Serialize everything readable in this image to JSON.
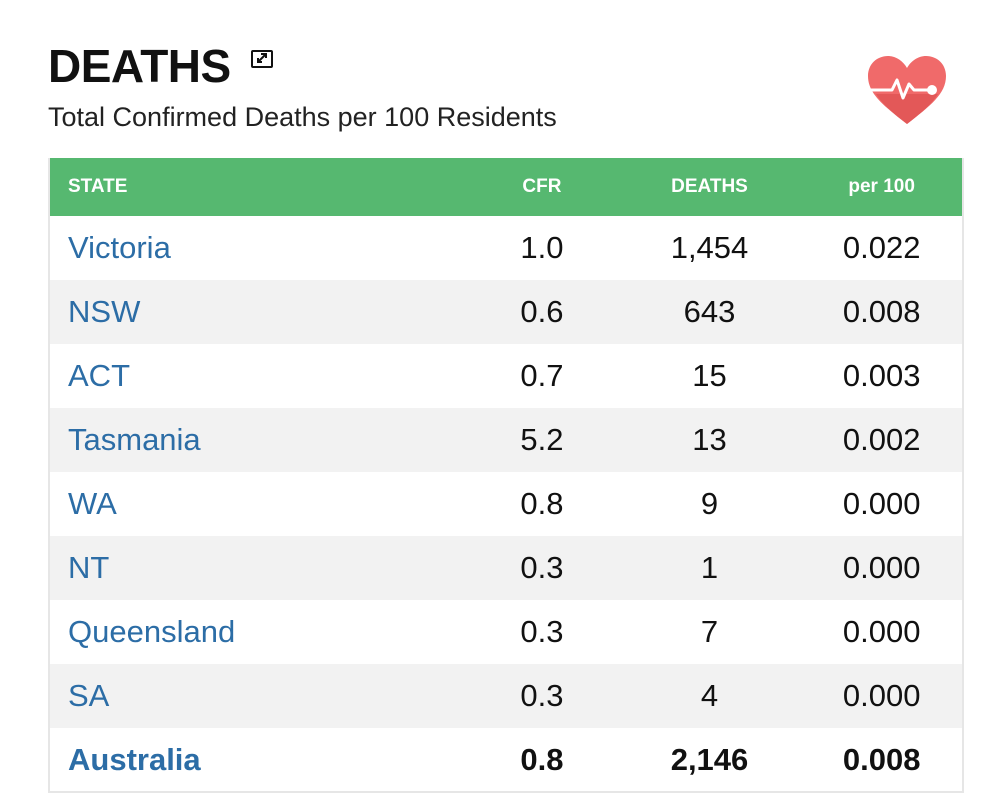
{
  "header": {
    "title": "DEATHS",
    "subtitle": "Total Confirmed Deaths per 100 Residents"
  },
  "colors": {
    "header_bg": "#56b870",
    "link": "#2c6da6",
    "heart": "#f06a6a"
  },
  "table": {
    "columns": [
      "STATE",
      "CFR",
      "DEATHS",
      "per 100"
    ],
    "rows": [
      {
        "state": "Victoria",
        "cfr": "1.0",
        "deaths": "1,454",
        "per100": "0.022"
      },
      {
        "state": "NSW",
        "cfr": "0.6",
        "deaths": "643",
        "per100": "0.008"
      },
      {
        "state": "ACT",
        "cfr": "0.7",
        "deaths": "15",
        "per100": "0.003"
      },
      {
        "state": "Tasmania",
        "cfr": "5.2",
        "deaths": "13",
        "per100": "0.002"
      },
      {
        "state": "WA",
        "cfr": "0.8",
        "deaths": "9",
        "per100": "0.000"
      },
      {
        "state": "NT",
        "cfr": "0.3",
        "deaths": "1",
        "per100": "0.000"
      },
      {
        "state": "Queensland",
        "cfr": "0.3",
        "deaths": "7",
        "per100": "0.000"
      },
      {
        "state": "SA",
        "cfr": "0.3",
        "deaths": "4",
        "per100": "0.000"
      }
    ],
    "total": {
      "state": "Australia",
      "cfr": "0.8",
      "deaths": "2,146",
      "per100": "0.008"
    }
  }
}
